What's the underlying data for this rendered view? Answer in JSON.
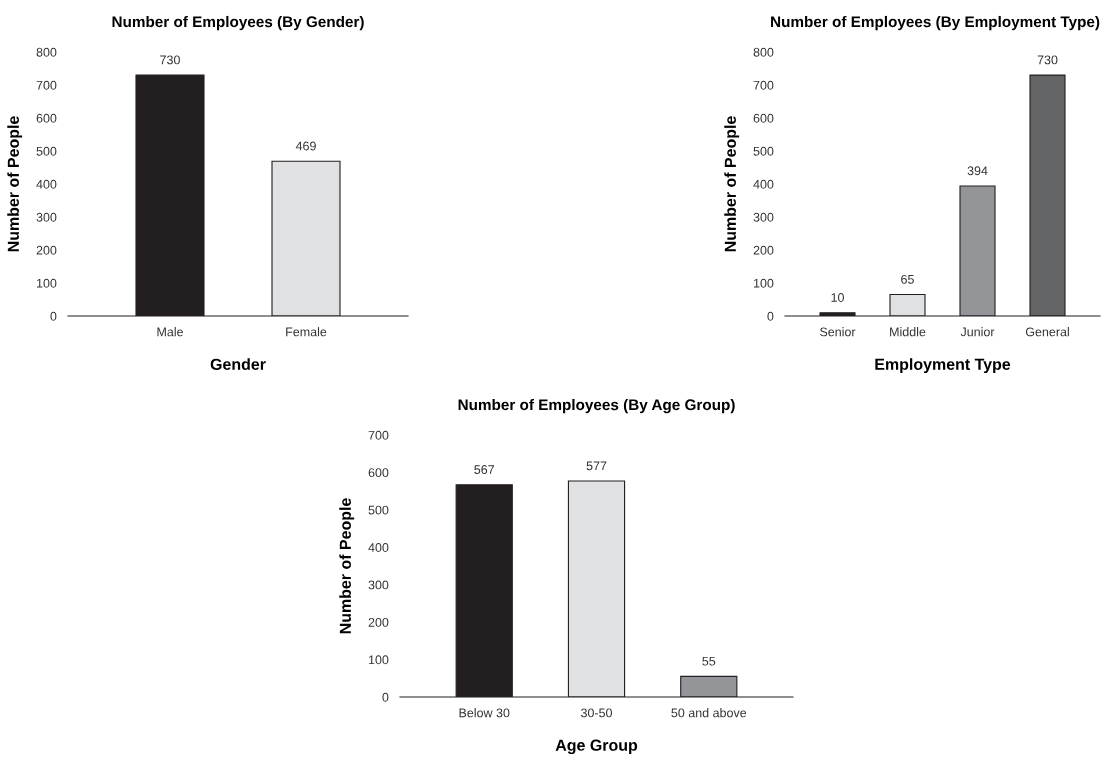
{
  "chart_data": [
    {
      "type": "bar",
      "title": "Number of Employees (By Gender)",
      "xlabel": "Gender",
      "ylabel": "Number of People",
      "categories": [
        "Male",
        "Female"
      ],
      "values": [
        730,
        469
      ],
      "colors": [
        "#231f20",
        "#e0e1e3"
      ],
      "ylim": [
        0,
        800
      ],
      "yticks": [
        0,
        100,
        200,
        300,
        400,
        500,
        600,
        700,
        800
      ],
      "data_labels": true,
      "grid": false
    },
    {
      "type": "bar",
      "title": "Number of Employees (By Employment Type)",
      "xlabel": "Employment Type",
      "ylabel": "Number of People",
      "categories": [
        "Senior",
        "Middle",
        "Junior",
        "General"
      ],
      "values": [
        10,
        65,
        394,
        730
      ],
      "colors": [
        "#231f20",
        "#e0e1e3",
        "#939598",
        "#636466"
      ],
      "ylim": [
        0,
        800
      ],
      "yticks": [
        0,
        100,
        200,
        300,
        400,
        500,
        600,
        700,
        800
      ],
      "data_labels": true,
      "grid": false
    },
    {
      "type": "bar",
      "title": "Number of Employees (By Age Group)",
      "xlabel": "Age Group",
      "ylabel": "Number of People",
      "categories": [
        "Below 30",
        "30-50",
        "50 and above"
      ],
      "values": [
        567,
        577,
        55
      ],
      "colors": [
        "#231f20",
        "#e0e1e3",
        "#939598"
      ],
      "ylim": [
        0,
        700
      ],
      "yticks": [
        0,
        100,
        200,
        300,
        400,
        500,
        600,
        700
      ],
      "data_labels": true,
      "grid": false
    }
  ]
}
